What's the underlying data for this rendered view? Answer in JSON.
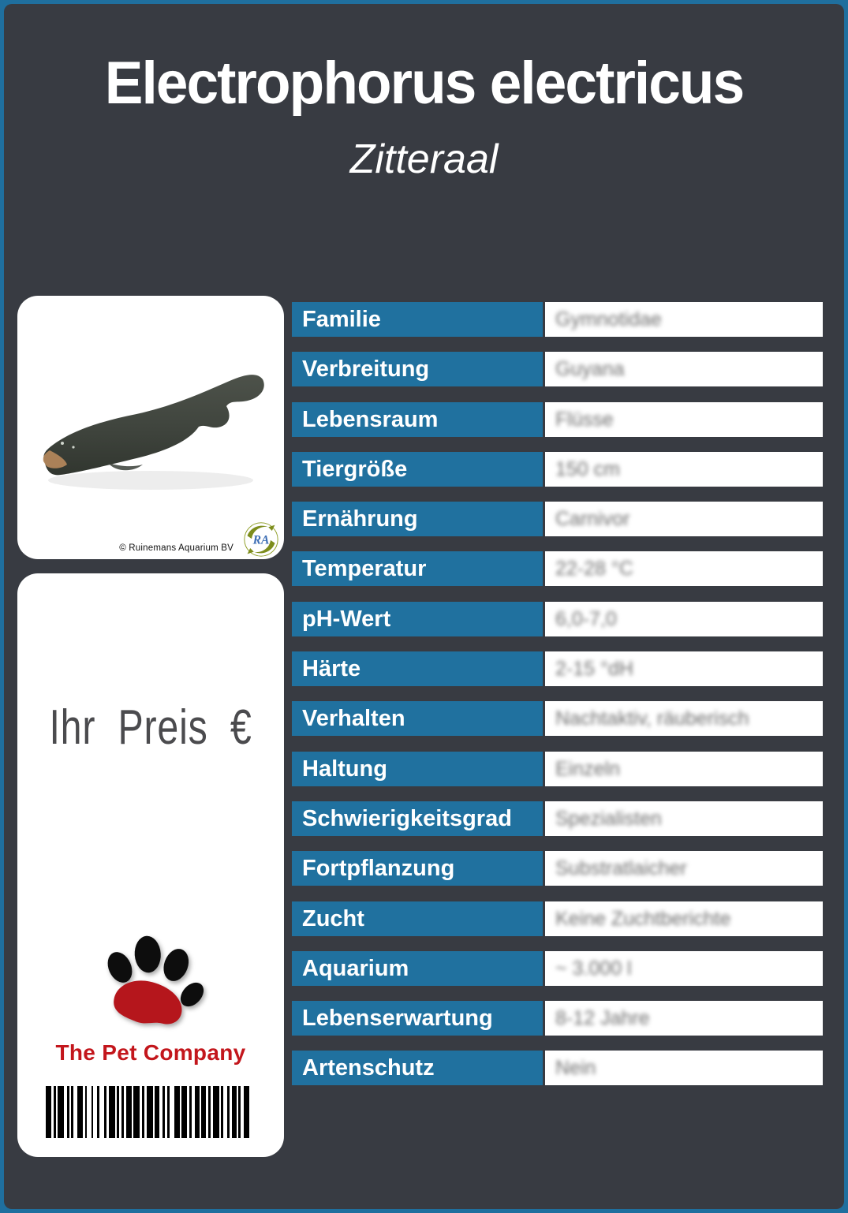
{
  "header": {
    "title": "Electrophorus electricus",
    "subtitle": "Zitteraal"
  },
  "photo_card": {
    "copyright": "© Ruinemans Aquarium BV",
    "supplier_logo_text": "RA"
  },
  "price_card": {
    "price_label": "Ihr Preis €",
    "brand": "The Pet Company"
  },
  "table": {
    "rows": [
      {
        "label": "Familie",
        "value": "Gymnotidae"
      },
      {
        "label": "Verbreitung",
        "value": "Guyana"
      },
      {
        "label": "Lebensraum",
        "value": "Flüsse"
      },
      {
        "label": "Tiergröße",
        "value": "150 cm"
      },
      {
        "label": "Ernährung",
        "value": "Carnivor"
      },
      {
        "label": "Temperatur",
        "value": "22-28 °C"
      },
      {
        "label": "pH-Wert",
        "value": "6,0-7,0"
      },
      {
        "label": "Härte",
        "value": "2-15 °dH"
      },
      {
        "label": "Verhalten",
        "value": "Nachtaktiv, räuberisch"
      },
      {
        "label": "Haltung",
        "value": "Einzeln"
      },
      {
        "label": "Schwierigkeitsgrad",
        "value": "Spezialisten"
      },
      {
        "label": "Fortpflanzung",
        "value": "Substratlaicher"
      },
      {
        "label": "Zucht",
        "value": "Keine Zuchtberichte"
      },
      {
        "label": "Aquarium",
        "value": "~ 3.000 l"
      },
      {
        "label": "Lebenserwartung",
        "value": "8-12 Jahre"
      },
      {
        "label": "Artenschutz",
        "value": "Nein"
      }
    ]
  },
  "colors": {
    "border_blue": "#1f6f9e",
    "background_dark": "#383b42",
    "label_blue": "#20719f",
    "brand_red": "#c3161c",
    "price_text": "#4b4b4e"
  },
  "barcode": {
    "units": [
      [
        7,
        3
      ],
      [
        3,
        2
      ],
      [
        8,
        4
      ],
      [
        3,
        2
      ],
      [
        3,
        5
      ],
      [
        7,
        3
      ],
      [
        2,
        6
      ],
      [
        2,
        5
      ],
      [
        3,
        6
      ],
      [
        3,
        3
      ],
      [
        8,
        2
      ],
      [
        3,
        3
      ],
      [
        3,
        3
      ],
      [
        7,
        2
      ],
      [
        8,
        3
      ],
      [
        3,
        3
      ],
      [
        8,
        2
      ],
      [
        6,
        4
      ],
      [
        3,
        3
      ],
      [
        3,
        6
      ],
      [
        7,
        2
      ],
      [
        7,
        3
      ],
      [
        3,
        4
      ],
      [
        6,
        2
      ],
      [
        6,
        3
      ],
      [
        3,
        3
      ],
      [
        8,
        2
      ],
      [
        3,
        5
      ],
      [
        3,
        3
      ],
      [
        6,
        2
      ],
      [
        3,
        4
      ],
      [
        7,
        0
      ]
    ]
  }
}
